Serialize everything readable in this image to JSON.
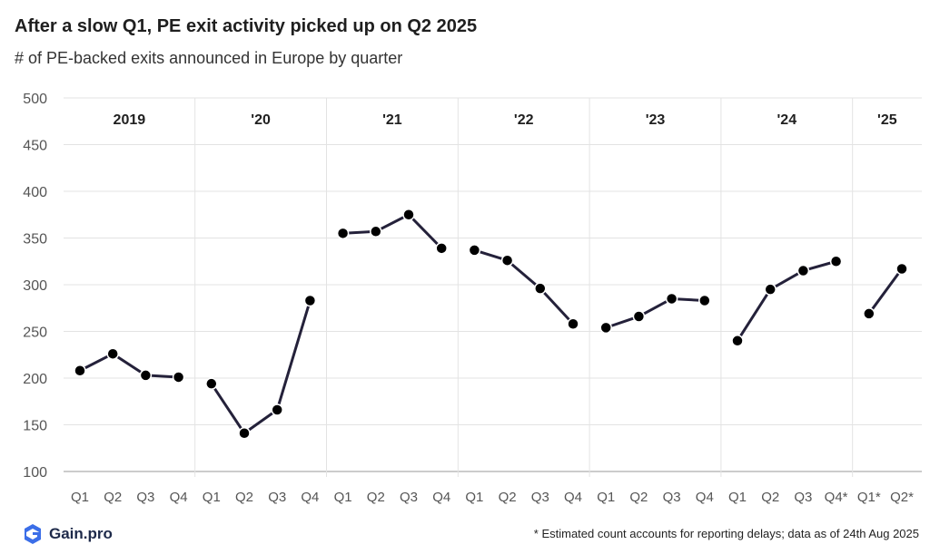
{
  "header": {
    "title": "After a slow Q1, PE exit activity picked up on Q2 2025",
    "subtitle": "# of PE-backed exits announced in Europe by quarter"
  },
  "footer": {
    "logo_text": "Gain.pro",
    "note": "* Estimated count accounts for reporting delays; data as of 24th  Aug 2025"
  },
  "chart_data": {
    "type": "line",
    "title": "After a slow Q1, PE exit activity picked up on Q2 2025",
    "subtitle": "# of PE-backed exits announced in Europe by quarter",
    "ylim": [
      100,
      500
    ],
    "yticks": [
      100,
      150,
      200,
      250,
      300,
      350,
      400,
      450,
      500
    ],
    "grid": true,
    "line_color": "#24213a",
    "groups": [
      {
        "label": "2019",
        "quarters": [
          "Q1",
          "Q2",
          "Q3",
          "Q4"
        ],
        "values": [
          208,
          226,
          203,
          201
        ]
      },
      {
        "label": "'20",
        "quarters": [
          "Q1",
          "Q2",
          "Q3",
          "Q4"
        ],
        "values": [
          194,
          141,
          166,
          283
        ]
      },
      {
        "label": "'21",
        "quarters": [
          "Q1",
          "Q2",
          "Q3",
          "Q4"
        ],
        "values": [
          355,
          357,
          375,
          339
        ]
      },
      {
        "label": "'22",
        "quarters": [
          "Q1",
          "Q2",
          "Q3",
          "Q4"
        ],
        "values": [
          337,
          326,
          296,
          258
        ]
      },
      {
        "label": "'23",
        "quarters": [
          "Q1",
          "Q2",
          "Q3",
          "Q4"
        ],
        "values": [
          254,
          266,
          285,
          283
        ]
      },
      {
        "label": "'24",
        "quarters": [
          "Q1",
          "Q2",
          "Q3",
          "Q4*"
        ],
        "values": [
          240,
          295,
          315,
          325
        ]
      },
      {
        "label": "'25",
        "quarters": [
          "Q1*",
          "Q2*"
        ],
        "values": [
          269,
          317
        ]
      }
    ]
  }
}
